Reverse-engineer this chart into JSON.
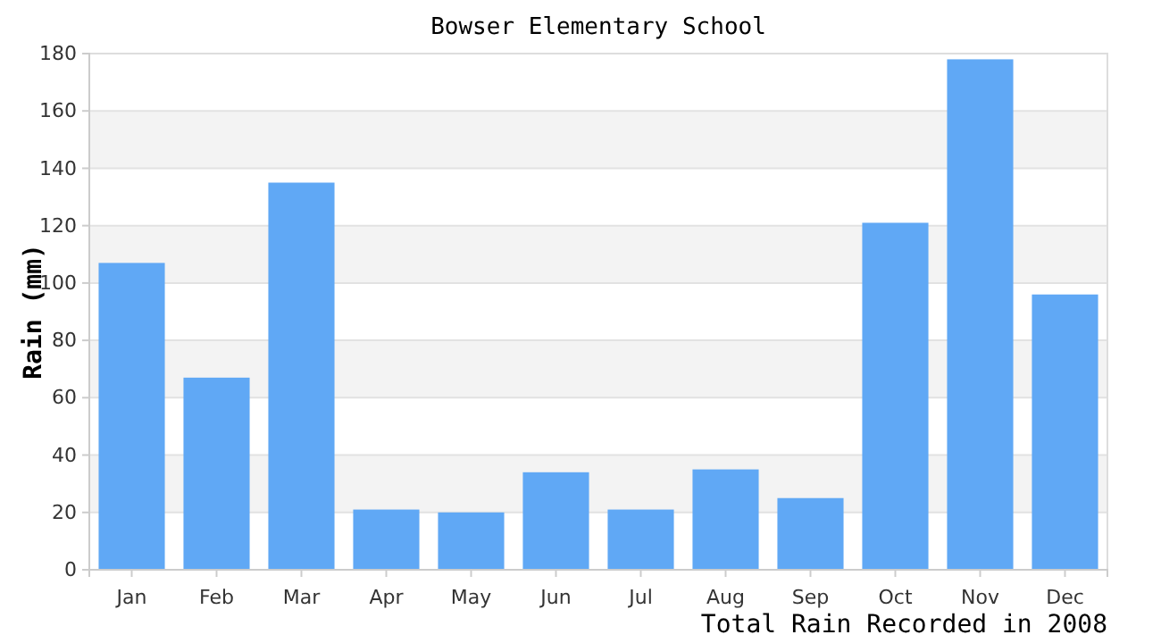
{
  "chart_data": {
    "type": "bar",
    "title": "Bowser Elementary School",
    "xlabel": "Total Rain Recorded in 2008",
    "ylabel": "Rain (mm)",
    "categories": [
      "Jan",
      "Feb",
      "Mar",
      "Apr",
      "May",
      "Jun",
      "Jul",
      "Aug",
      "Sep",
      "Oct",
      "Nov",
      "Dec"
    ],
    "values": [
      107,
      67,
      135,
      21,
      20,
      34,
      21,
      35,
      25,
      121,
      178,
      96
    ],
    "color": "#60a8f5",
    "ylim": [
      0,
      180
    ],
    "yticks": [
      0,
      20,
      40,
      60,
      80,
      100,
      120,
      140,
      160,
      180
    ],
    "grid": true
  }
}
